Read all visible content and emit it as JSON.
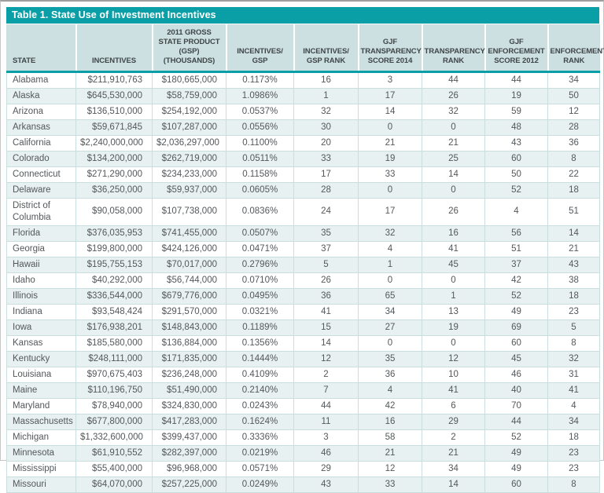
{
  "colors": {
    "accent": "#0a9fa6",
    "header_bg": "#ccdfe1",
    "row_alt_bg": "#e8f1f2"
  },
  "table": {
    "title": "Table 1. State Use of Investment Incentives",
    "columns": [
      "STATE",
      "INCENTIVES",
      "2011 GROSS STATE PRODUCT (GSP) (THOUSANDS)",
      "INCENTIVES/ GSP",
      "INCENTIVES/ GSP RANK",
      "GJF TRANSPARENCY SCORE 2014",
      "TRANSPARENCY RANK",
      "GJF ENFORCEMENT SCORE 2012",
      "ENFORCEMENT RANK"
    ],
    "rows": [
      [
        "Alabama",
        "$211,910,763",
        "$180,665,000",
        "0.1173%",
        "16",
        "3",
        "44",
        "44",
        "34"
      ],
      [
        "Alaska",
        "$645,530,000",
        "$58,759,000",
        "1.0986%",
        "1",
        "17",
        "26",
        "19",
        "50"
      ],
      [
        "Arizona",
        "$136,510,000",
        "$254,192,000",
        "0.0537%",
        "32",
        "14",
        "32",
        "59",
        "12"
      ],
      [
        "Arkansas",
        "$59,671,845",
        "$107,287,000",
        "0.0556%",
        "30",
        "0",
        "0",
        "48",
        "28"
      ],
      [
        "California",
        "$2,240,000,000",
        "$2,036,297,000",
        "0.1100%",
        "20",
        "21",
        "21",
        "43",
        "36"
      ],
      [
        "Colorado",
        "$134,200,000",
        "$262,719,000",
        "0.0511%",
        "33",
        "19",
        "25",
        "60",
        "8"
      ],
      [
        "Connecticut",
        "$271,290,000",
        "$234,233,000",
        "0.1158%",
        "17",
        "33",
        "14",
        "50",
        "22"
      ],
      [
        "Delaware",
        "$36,250,000",
        "$59,937,000",
        "0.0605%",
        "28",
        "0",
        "0",
        "52",
        "18"
      ],
      [
        "District of Columbia",
        "$90,058,000",
        "$107,738,000",
        "0.0836%",
        "24",
        "17",
        "26",
        "4",
        "51"
      ],
      [
        "Florida",
        "$376,035,953",
        "$741,455,000",
        "0.0507%",
        "35",
        "32",
        "16",
        "56",
        "14"
      ],
      [
        "Georgia",
        "$199,800,000",
        "$424,126,000",
        "0.0471%",
        "37",
        "4",
        "41",
        "51",
        "21"
      ],
      [
        "Hawaii",
        "$195,755,153",
        "$70,017,000",
        "0.2796%",
        "5",
        "1",
        "45",
        "37",
        "43"
      ],
      [
        "Idaho",
        "$40,292,000",
        "$56,744,000",
        "0.0710%",
        "26",
        "0",
        "0",
        "42",
        "38"
      ],
      [
        "Illinois",
        "$336,544,000",
        "$679,776,000",
        "0.0495%",
        "36",
        "65",
        "1",
        "52",
        "18"
      ],
      [
        "Indiana",
        "$93,548,424",
        "$291,570,000",
        "0.0321%",
        "41",
        "34",
        "13",
        "49",
        "23"
      ],
      [
        "Iowa",
        "$176,938,201",
        "$148,843,000",
        "0.1189%",
        "15",
        "27",
        "19",
        "69",
        "5"
      ],
      [
        "Kansas",
        "$185,580,000",
        "$136,884,000",
        "0.1356%",
        "14",
        "0",
        "0",
        "60",
        "8"
      ],
      [
        "Kentucky",
        "$248,111,000",
        "$171,835,000",
        "0.1444%",
        "12",
        "35",
        "12",
        "45",
        "32"
      ],
      [
        "Louisiana",
        "$970,675,403",
        "$236,248,000",
        "0.4109%",
        "2",
        "36",
        "10",
        "46",
        "31"
      ],
      [
        "Maine",
        "$110,196,750",
        "$51,490,000",
        "0.2140%",
        "7",
        "4",
        "41",
        "40",
        "41"
      ],
      [
        "Maryland",
        "$78,940,000",
        "$324,830,000",
        "0.0243%",
        "44",
        "42",
        "6",
        "70",
        "4"
      ],
      [
        "Massachusetts",
        "$677,800,000",
        "$417,283,000",
        "0.1624%",
        "11",
        "16",
        "29",
        "44",
        "34"
      ],
      [
        "Michigan",
        "$1,332,600,000",
        "$399,437,000",
        "0.3336%",
        "3",
        "58",
        "2",
        "52",
        "18"
      ],
      [
        "Minnesota",
        "$61,910,552",
        "$282,397,000",
        "0.0219%",
        "46",
        "21",
        "21",
        "49",
        "23"
      ],
      [
        "Mississippi",
        "$55,400,000",
        "$96,968,000",
        "0.0571%",
        "29",
        "12",
        "34",
        "49",
        "23"
      ],
      [
        "Missouri",
        "$64,070,000",
        "$257,225,000",
        "0.0249%",
        "43",
        "33",
        "14",
        "60",
        "8"
      ]
    ]
  }
}
